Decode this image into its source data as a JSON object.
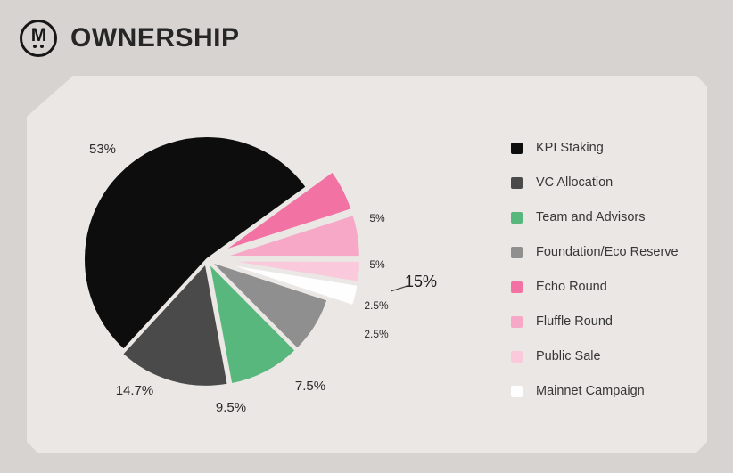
{
  "header": {
    "logo_letter": "M",
    "title": "OWNERSHIP"
  },
  "chart_data": {
    "type": "pie",
    "title": "OWNERSHIP",
    "legend_position": "right",
    "grid": false,
    "series": [
      {
        "name": "KPI Staking",
        "value": 53,
        "label": "53%",
        "color": "#0d0d0d",
        "exploded": false
      },
      {
        "name": "VC Allocation",
        "value": 14.7,
        "label": "14.7%",
        "color": "#4a4a4a",
        "exploded": false
      },
      {
        "name": "Team and Advisors",
        "value": 9.5,
        "label": "9.5%",
        "color": "#57b77d",
        "exploded": false
      },
      {
        "name": "Foundation/Eco Reserve",
        "value": 7.5,
        "label": "7.5%",
        "color": "#8f8f8f",
        "exploded": false
      },
      {
        "name": "Echo Round",
        "value": 5,
        "label": "5%",
        "color": "#f272a4",
        "exploded": true
      },
      {
        "name": "Fluffle Round",
        "value": 5,
        "label": "5%",
        "color": "#f7a8c7",
        "exploded": true
      },
      {
        "name": "Public Sale",
        "value": 2.5,
        "label": "2.5%",
        "color": "#fbc9dc",
        "exploded": true
      },
      {
        "name": "Mainnet Campaign",
        "value": 2.5,
        "label": "2.5%",
        "color": "#fefefe",
        "exploded": true
      }
    ],
    "annotation": {
      "text": "15%"
    }
  }
}
